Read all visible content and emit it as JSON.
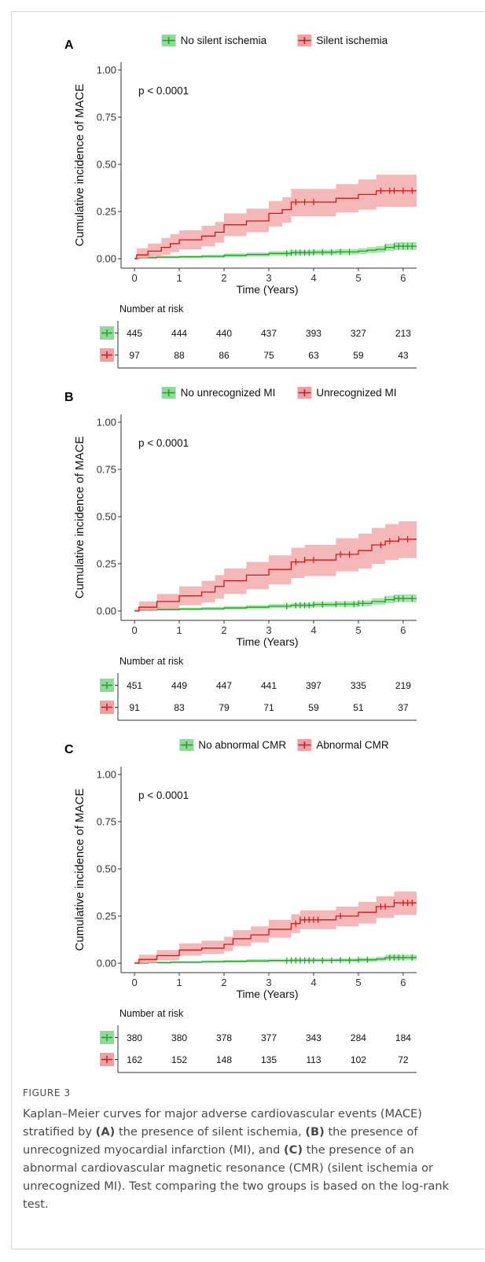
{
  "figure": {
    "label": "FIGURE 3",
    "caption": [
      {
        "t": "Kaplan–Meier curves for major adverse cardiovascular events (MACE) stratified by ",
        "b": false
      },
      {
        "t": "(A)",
        "b": true
      },
      {
        "t": " the presence of silent ischemia, ",
        "b": false
      },
      {
        "t": "(B)",
        "b": true
      },
      {
        "t": " the presence of unrecognized myocardial infarction (MI), and ",
        "b": false
      },
      {
        "t": "(C)",
        "b": true
      },
      {
        "t": " the presence of an abnormal cardiovascular magnetic resonance (CMR) (silent ischemia or unrecognized MI). Test comparing the two groups is based on the log-rank test.",
        "b": false
      }
    ]
  },
  "colors": {
    "green_line": "#1ea51e",
    "green_band": "#8fd99a",
    "red_line": "#d81414",
    "red_band": "#f0a0a0",
    "axis": "#333333"
  },
  "chart_data": [
    {
      "panel": "A",
      "type": "line",
      "ylabel": "Cumulative incidence of MACE",
      "xlabel": "Time (Years)",
      "xlim": [
        -0.3,
        6.3
      ],
      "ylim": [
        0,
        1.0
      ],
      "xticks": [
        0,
        1,
        2,
        3,
        4,
        5,
        6
      ],
      "yticks": [
        "0.00",
        "0.25",
        "0.50",
        "0.75",
        "1.00"
      ],
      "pvalue": "p < 0.0001",
      "risk_title": "Number at risk",
      "series": [
        {
          "name": "No silent ischemia",
          "color": "green",
          "steps": [
            [
              0,
              0
            ],
            [
              0.1,
              0.005
            ],
            [
              0.5,
              0.008
            ],
            [
              1.0,
              0.01
            ],
            [
              1.5,
              0.012
            ],
            [
              2.0,
              0.018
            ],
            [
              2.5,
              0.022
            ],
            [
              3.0,
              0.028
            ],
            [
              3.5,
              0.032
            ],
            [
              4.0,
              0.034
            ],
            [
              4.5,
              0.036
            ],
            [
              5.0,
              0.04
            ],
            [
              5.2,
              0.045
            ],
            [
              5.4,
              0.05
            ],
            [
              5.6,
              0.06
            ],
            [
              5.8,
              0.066
            ],
            [
              6.3,
              0.066
            ]
          ],
          "ci_upper": [
            0.004,
            0.012,
            0.016,
            0.018,
            0.021,
            0.028,
            0.033,
            0.04,
            0.045,
            0.048,
            0.051,
            0.056,
            0.062,
            0.068,
            0.08,
            0.088,
            0.088
          ],
          "ci_lower": [
            0,
            0.001,
            0.002,
            0.003,
            0.004,
            0.008,
            0.011,
            0.016,
            0.019,
            0.021,
            0.022,
            0.025,
            0.029,
            0.033,
            0.041,
            0.046,
            0.046
          ],
          "censor": [
            3.4,
            3.5,
            3.6,
            3.7,
            3.8,
            3.9,
            4.0,
            4.2,
            4.4,
            4.6,
            4.8,
            5.6,
            5.8,
            5.9,
            6.0,
            6.1,
            6.2
          ],
          "at_risk": [
            445,
            444,
            440,
            437,
            393,
            327,
            213
          ]
        },
        {
          "name": "Silent ischemia",
          "color": "red",
          "steps": [
            [
              0,
              0
            ],
            [
              0.05,
              0.02
            ],
            [
              0.3,
              0.04
            ],
            [
              0.6,
              0.06
            ],
            [
              0.8,
              0.08
            ],
            [
              1.0,
              0.1
            ],
            [
              1.5,
              0.12
            ],
            [
              1.8,
              0.14
            ],
            [
              2.0,
              0.18
            ],
            [
              2.5,
              0.2
            ],
            [
              3.0,
              0.24
            ],
            [
              3.3,
              0.26
            ],
            [
              3.5,
              0.3
            ],
            [
              4.5,
              0.32
            ],
            [
              5.0,
              0.34
            ],
            [
              5.4,
              0.36
            ],
            [
              6.3,
              0.36
            ]
          ],
          "ci_upper": [
            0.01,
            0.055,
            0.08,
            0.11,
            0.13,
            0.15,
            0.175,
            0.195,
            0.24,
            0.265,
            0.305,
            0.325,
            0.37,
            0.395,
            0.42,
            0.445,
            0.445
          ],
          "ci_lower": [
            0,
            0,
            0.01,
            0.02,
            0.035,
            0.05,
            0.065,
            0.085,
            0.12,
            0.14,
            0.17,
            0.19,
            0.225,
            0.245,
            0.26,
            0.275,
            0.26
          ],
          "censor": [
            3.6,
            3.8,
            4.0,
            5.5,
            5.7,
            5.8,
            6.0,
            6.2
          ],
          "at_risk": [
            97,
            88,
            86,
            75,
            63,
            59,
            43
          ]
        }
      ]
    },
    {
      "panel": "B",
      "type": "line",
      "ylabel": "Cumulative incidence of MACE",
      "xlabel": "Time (Years)",
      "xlim": [
        -0.3,
        6.3
      ],
      "ylim": [
        0,
        1.0
      ],
      "xticks": [
        0,
        1,
        2,
        3,
        4,
        5,
        6
      ],
      "yticks": [
        "0.00",
        "0.25",
        "0.50",
        "0.75",
        "1.00"
      ],
      "pvalue": "p < 0.0001",
      "risk_title": "Number at risk",
      "series": [
        {
          "name": "No unrecognized MI",
          "color": "green",
          "steps": [
            [
              0,
              0
            ],
            [
              0.1,
              0.005
            ],
            [
              0.5,
              0.007
            ],
            [
              1.0,
              0.01
            ],
            [
              1.5,
              0.012
            ],
            [
              2.0,
              0.016
            ],
            [
              2.5,
              0.02
            ],
            [
              3.0,
              0.025
            ],
            [
              3.5,
              0.03
            ],
            [
              4.0,
              0.034
            ],
            [
              4.5,
              0.036
            ],
            [
              5.0,
              0.04
            ],
            [
              5.3,
              0.05
            ],
            [
              5.6,
              0.06
            ],
            [
              5.8,
              0.066
            ],
            [
              6.3,
              0.066
            ]
          ],
          "ci_upper": [
            0.004,
            0.012,
            0.015,
            0.018,
            0.021,
            0.026,
            0.031,
            0.037,
            0.043,
            0.048,
            0.051,
            0.056,
            0.068,
            0.08,
            0.088,
            0.088
          ],
          "ci_lower": [
            0,
            0.001,
            0.002,
            0.003,
            0.004,
            0.007,
            0.01,
            0.014,
            0.018,
            0.021,
            0.022,
            0.025,
            0.033,
            0.041,
            0.046,
            0.046
          ],
          "censor": [
            3.4,
            3.6,
            3.7,
            3.8,
            3.9,
            4.0,
            4.2,
            4.5,
            4.7,
            4.9,
            5.0,
            5.1,
            5.6,
            5.8,
            5.9,
            6.0,
            6.2
          ],
          "at_risk": [
            451,
            449,
            447,
            441,
            397,
            335,
            219
          ]
        },
        {
          "name": "Unrecognized MI",
          "color": "red",
          "steps": [
            [
              0,
              0
            ],
            [
              0.1,
              0.02
            ],
            [
              0.5,
              0.05
            ],
            [
              1.0,
              0.08
            ],
            [
              1.5,
              0.1
            ],
            [
              1.8,
              0.13
            ],
            [
              2.0,
              0.16
            ],
            [
              2.5,
              0.19
            ],
            [
              3.0,
              0.22
            ],
            [
              3.5,
              0.26
            ],
            [
              3.8,
              0.27
            ],
            [
              4.5,
              0.3
            ],
            [
              5.0,
              0.32
            ],
            [
              5.3,
              0.35
            ],
            [
              5.6,
              0.37
            ],
            [
              5.9,
              0.38
            ],
            [
              6.3,
              0.38
            ]
          ],
          "ci_upper": [
            0.01,
            0.05,
            0.09,
            0.13,
            0.16,
            0.19,
            0.225,
            0.26,
            0.295,
            0.335,
            0.35,
            0.385,
            0.41,
            0.44,
            0.46,
            0.475,
            0.475
          ],
          "ci_lower": [
            0,
            0,
            0.01,
            0.03,
            0.045,
            0.065,
            0.09,
            0.115,
            0.14,
            0.175,
            0.185,
            0.21,
            0.225,
            0.25,
            0.27,
            0.28,
            0.27
          ],
          "censor": [
            3.6,
            3.8,
            4.0,
            4.6,
            4.8,
            5.5,
            5.7,
            5.9,
            6.1
          ],
          "at_risk": [
            91,
            83,
            79,
            71,
            59,
            51,
            37
          ]
        }
      ]
    },
    {
      "panel": "C",
      "type": "line",
      "ylabel": "Cumulative incidence of MACE",
      "xlabel": "Time (Years)",
      "xlim": [
        -0.3,
        6.3
      ],
      "ylim": [
        0,
        1.0
      ],
      "xticks": [
        0,
        1,
        2,
        3,
        4,
        5,
        6
      ],
      "yticks": [
        "0.00",
        "0.25",
        "0.50",
        "0.75",
        "1.00"
      ],
      "pvalue": "p < 0.0001",
      "risk_title": "Number at risk",
      "series": [
        {
          "name": "No abnormal CMR",
          "color": "green",
          "steps": [
            [
              0,
              0
            ],
            [
              0.3,
              0.003
            ],
            [
              0.8,
              0.005
            ],
            [
              1.5,
              0.008
            ],
            [
              2.0,
              0.01
            ],
            [
              2.5,
              0.012
            ],
            [
              3.0,
              0.014
            ],
            [
              3.5,
              0.015
            ],
            [
              4.5,
              0.016
            ],
            [
              5.0,
              0.018
            ],
            [
              5.4,
              0.022
            ],
            [
              5.6,
              0.03
            ],
            [
              6.3,
              0.03
            ]
          ],
          "ci_upper": [
            0.003,
            0.008,
            0.011,
            0.015,
            0.018,
            0.021,
            0.023,
            0.025,
            0.026,
            0.029,
            0.035,
            0.045,
            0.045
          ],
          "ci_lower": [
            0,
            0.0,
            0.001,
            0.002,
            0.003,
            0.004,
            0.005,
            0.006,
            0.006,
            0.007,
            0.01,
            0.016,
            0.016
          ],
          "censor": [
            3.4,
            3.5,
            3.6,
            3.7,
            3.8,
            3.9,
            4.0,
            4.2,
            4.4,
            4.6,
            4.8,
            5.0,
            5.2,
            5.7,
            5.8,
            5.9,
            6.0,
            6.2
          ],
          "at_risk": [
            380,
            380,
            378,
            377,
            343,
            284,
            184
          ]
        },
        {
          "name": "Abnormal CMR",
          "color": "red",
          "steps": [
            [
              0,
              0
            ],
            [
              0.1,
              0.02
            ],
            [
              0.5,
              0.04
            ],
            [
              1.0,
              0.07
            ],
            [
              1.5,
              0.08
            ],
            [
              2.0,
              0.1
            ],
            [
              2.2,
              0.13
            ],
            [
              2.6,
              0.15
            ],
            [
              3.0,
              0.18
            ],
            [
              3.5,
              0.21
            ],
            [
              3.7,
              0.23
            ],
            [
              4.5,
              0.25
            ],
            [
              5.0,
              0.27
            ],
            [
              5.4,
              0.3
            ],
            [
              5.8,
              0.32
            ],
            [
              6.3,
              0.32
            ]
          ],
          "ci_upper": [
            0.01,
            0.045,
            0.07,
            0.105,
            0.12,
            0.14,
            0.175,
            0.195,
            0.23,
            0.26,
            0.28,
            0.3,
            0.325,
            0.355,
            0.38,
            0.39
          ],
          "ci_lower": [
            0,
            0,
            0.015,
            0.04,
            0.05,
            0.065,
            0.09,
            0.11,
            0.135,
            0.16,
            0.18,
            0.195,
            0.21,
            0.24,
            0.255,
            0.25
          ],
          "censor": [
            3.6,
            3.7,
            3.8,
            3.9,
            4.0,
            4.1,
            4.6,
            5.5,
            5.6,
            5.8,
            6.0,
            6.1,
            6.2
          ],
          "at_risk": [
            162,
            152,
            148,
            135,
            113,
            102,
            72
          ]
        }
      ]
    }
  ]
}
